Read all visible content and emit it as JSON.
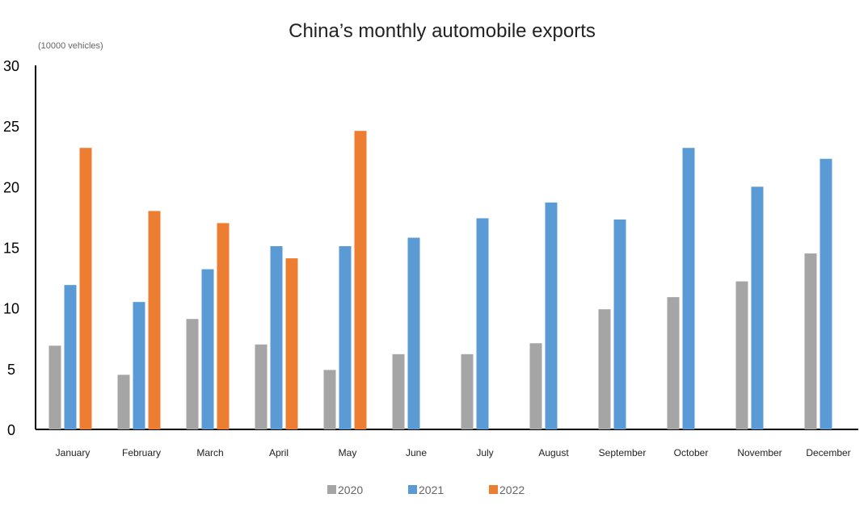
{
  "chart_data": {
    "type": "bar",
    "title": "China’s monthly automobile exports",
    "ylabel": "(10000 vehicles)",
    "xlabel": "",
    "ylim": [
      0,
      30
    ],
    "yticks": [
      0,
      5,
      10,
      15,
      20,
      25,
      30
    ],
    "grid": false,
    "legend_position": "bottom",
    "categories": [
      "January",
      "February",
      "March",
      "April",
      "May",
      "June",
      "July",
      "August",
      "September",
      "October",
      "November",
      "December"
    ],
    "series": [
      {
        "name": "2020",
        "color": "#a5a5a5",
        "values": [
          6.9,
          4.5,
          9.1,
          7.0,
          4.9,
          6.2,
          6.2,
          7.1,
          9.9,
          10.9,
          12.2,
          14.5
        ]
      },
      {
        "name": "2021",
        "color": "#5b9bd5",
        "values": [
          11.9,
          10.5,
          13.2,
          15.1,
          15.1,
          15.8,
          17.4,
          18.7,
          17.3,
          23.2,
          20.0,
          22.3
        ]
      },
      {
        "name": "2022",
        "color": "#ed7d31",
        "values": [
          23.2,
          18.0,
          17.0,
          14.1,
          24.6,
          null,
          null,
          null,
          null,
          null,
          null,
          null
        ]
      }
    ]
  }
}
